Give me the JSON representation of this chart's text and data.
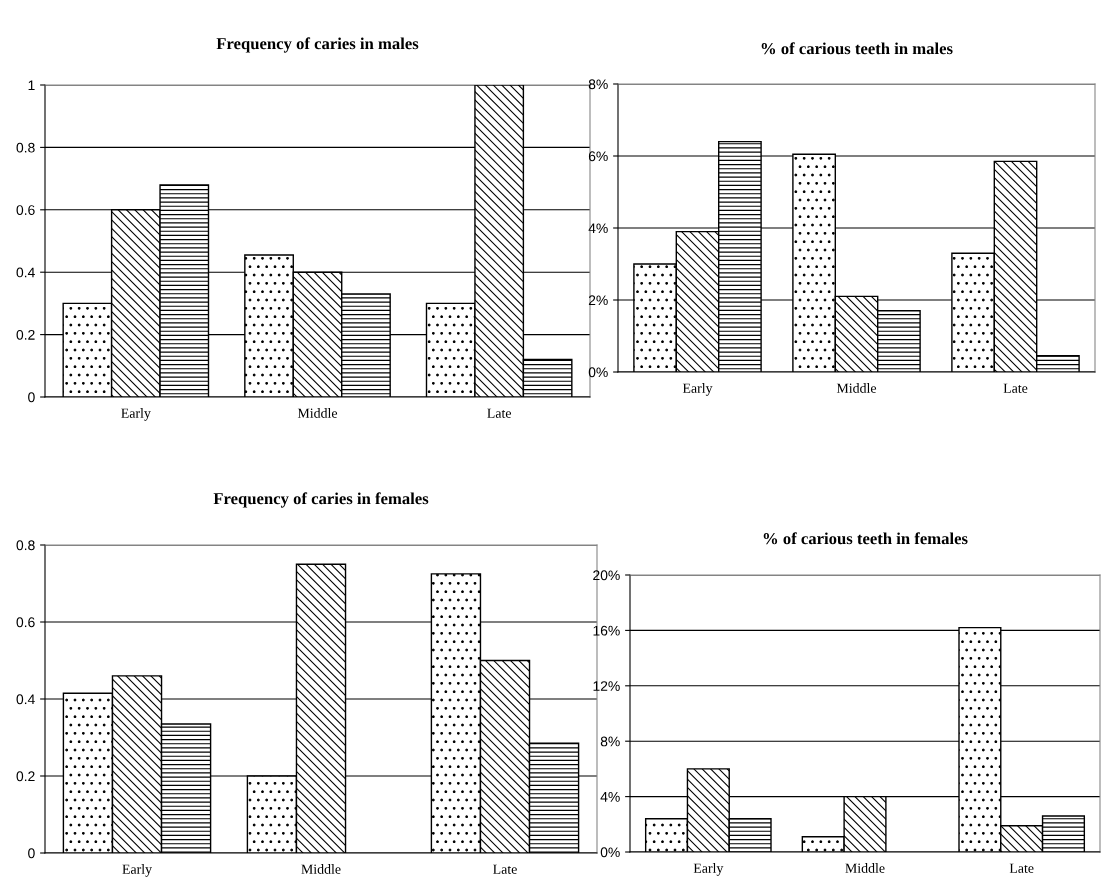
{
  "chart_data": [
    {
      "type": "bar",
      "title": "Frequency of caries in males",
      "categories": [
        "Early",
        "Middle",
        "Late"
      ],
      "series": [
        {
          "color": "#000000",
          "values": [
            0.3,
            0.455,
            0.3
          ]
        },
        {
          "color": "#000000",
          "values": [
            0.6,
            0.4,
            1.0
          ]
        },
        {
          "color": "#000000",
          "values": [
            0.68,
            0.33,
            0.12
          ]
        }
      ],
      "ylim": [
        0,
        1
      ],
      "yticks": [
        0,
        0.2,
        0.4,
        0.6,
        0.8,
        1
      ],
      "grid": "y",
      "legend": false
    },
    {
      "type": "bar",
      "title": "% of carious teeth in males",
      "categories": [
        "Early",
        "Middle",
        "Late"
      ],
      "series": [
        {
          "color": "#000000",
          "values": [
            3.0,
            6.05,
            3.3
          ]
        },
        {
          "color": "#000000",
          "values": [
            3.9,
            2.1,
            5.85
          ]
        },
        {
          "color": "#000000",
          "values": [
            6.4,
            1.7,
            0.45
          ]
        }
      ],
      "ylim": [
        0,
        8
      ],
      "yticks": [
        {
          "value": 0,
          "label": "0%"
        },
        {
          "value": 2,
          "label": "2%"
        },
        {
          "value": 4,
          "label": "4%"
        },
        {
          "value": 6,
          "label": "6%"
        },
        {
          "value": 8,
          "label": "8%"
        }
      ],
      "grid": "y",
      "legend": false
    },
    {
      "type": "bar",
      "title": "Frequency of caries in females",
      "categories": [
        "Early",
        "Middle",
        "Late"
      ],
      "series": [
        {
          "color": "#000000",
          "values": [
            0.415,
            0.2,
            0.725
          ]
        },
        {
          "color": "#000000",
          "values": [
            0.46,
            0.75,
            0.5
          ]
        },
        {
          "color": "#000000",
          "values": [
            0.335,
            null,
            0.285
          ]
        }
      ],
      "ylim": [
        0,
        0.8
      ],
      "yticks": [
        0,
        0.2,
        0.4,
        0.6,
        0.8
      ],
      "grid": "y",
      "legend": false
    },
    {
      "type": "bar",
      "title": "% of carious teeth in females",
      "categories": [
        "Early",
        "Middle",
        "Late"
      ],
      "series": [
        {
          "color": "#000000",
          "values": [
            2.4,
            1.1,
            16.2
          ]
        },
        {
          "color": "#000000",
          "values": [
            6.0,
            4.0,
            1.9
          ]
        },
        {
          "color": "#000000",
          "values": [
            2.4,
            null,
            2.6
          ]
        }
      ],
      "ylim": [
        0,
        20
      ],
      "yticks": [
        {
          "value": 0,
          "label": "0%"
        },
        {
          "value": 4,
          "label": "4%"
        },
        {
          "value": 8,
          "label": "8%"
        },
        {
          "value": 12,
          "label": "12%"
        },
        {
          "value": 16,
          "label": "16%"
        },
        {
          "value": 20,
          "label": "20%"
        }
      ],
      "grid": "y",
      "legend": false
    }
  ]
}
